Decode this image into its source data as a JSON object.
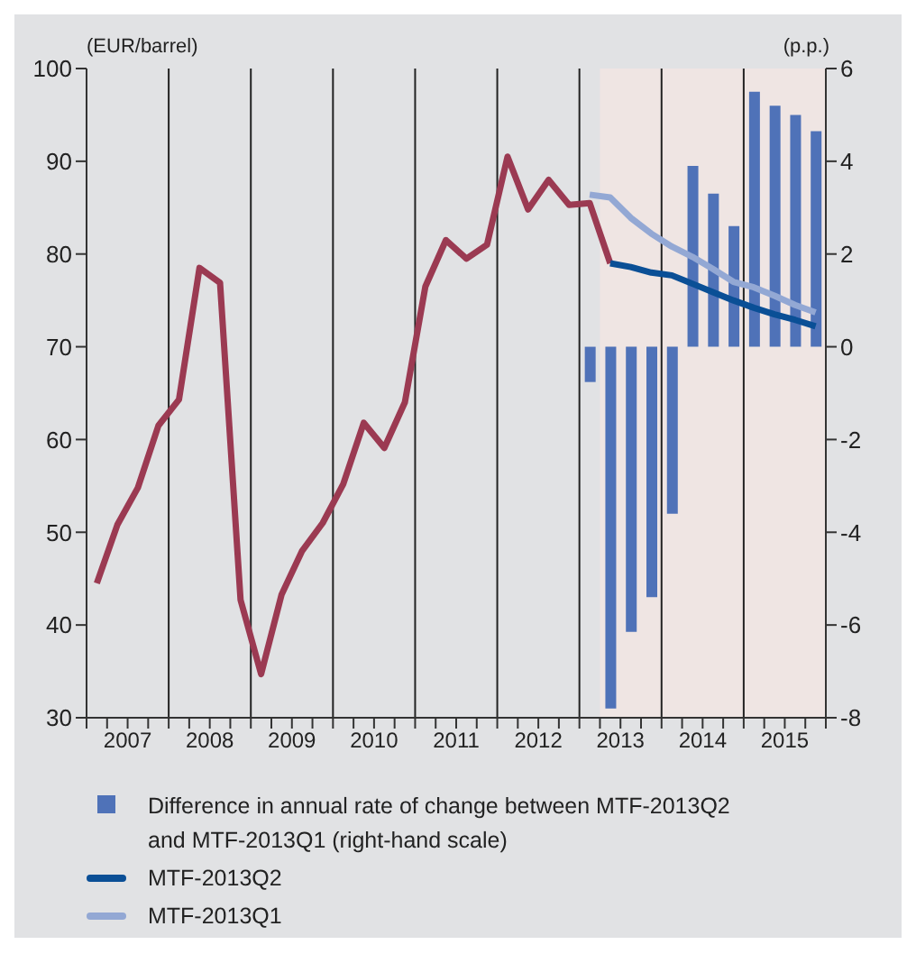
{
  "chart_data": {
    "type": "line",
    "ylabel": "(EUR/barrel)",
    "y2label": "(p.p.)",
    "x": [
      2007.125,
      2007.375,
      2007.625,
      2007.875,
      2008.125,
      2008.375,
      2008.625,
      2008.875,
      2009.125,
      2009.375,
      2009.625,
      2009.875,
      2010.125,
      2010.375,
      2010.625,
      2010.875,
      2011.125,
      2011.375,
      2011.625,
      2011.875,
      2012.125,
      2012.375,
      2012.625,
      2012.875,
      2013.125,
      2013.375,
      2013.625,
      2013.875,
      2014.125,
      2014.375,
      2014.625,
      2014.875,
      2015.125,
      2015.375,
      2015.625,
      2015.875
    ],
    "series": [
      {
        "type": "bar",
        "axis": "y2",
        "name": "Difference in annual rate of change between MTF-2013Q2 and MTF-2013Q1 (right-hand scale)",
        "color": "#4f72b8",
        "values": [
          null,
          null,
          null,
          null,
          null,
          null,
          null,
          null,
          null,
          null,
          null,
          null,
          null,
          null,
          null,
          null,
          null,
          null,
          null,
          null,
          null,
          null,
          null,
          null,
          -0.76,
          -7.8,
          -6.15,
          -5.4,
          -3.6,
          3.9,
          3.3,
          2.6,
          5.5,
          5.2,
          5.0,
          4.65
        ]
      },
      {
        "color": "#9b3a52",
        "values": [
          44.5,
          50.8,
          54.8,
          61.5,
          64.3,
          78.5,
          76.9,
          42.7,
          34.7,
          43.3,
          48,
          51,
          55.2,
          61.8,
          59.1,
          64,
          76.5,
          81.5,
          79.5,
          81,
          90.5,
          84.8,
          88,
          85.3,
          85.5,
          79.0,
          null,
          null,
          null,
          null,
          null,
          null,
          null,
          null,
          null,
          null
        ]
      },
      {
        "name": "MTF-2013Q2",
        "color": "#0a4f96",
        "values": [
          null,
          null,
          null,
          null,
          null,
          null,
          null,
          null,
          null,
          null,
          null,
          null,
          null,
          null,
          null,
          null,
          null,
          null,
          null,
          null,
          null,
          null,
          null,
          null,
          null,
          79.0,
          78.6,
          78.0,
          77.7,
          76.8,
          75.9,
          75.0,
          74.2,
          73.5,
          72.9,
          72.2
        ]
      },
      {
        "name": "MTF-2013Q1",
        "color": "#93a8d4",
        "values": [
          null,
          null,
          null,
          null,
          null,
          null,
          null,
          null,
          null,
          null,
          null,
          null,
          null,
          null,
          null,
          null,
          null,
          null,
          null,
          null,
          null,
          null,
          null,
          null,
          86.4,
          86.1,
          83.9,
          82.2,
          80.8,
          79.7,
          78.4,
          77.0,
          76.4,
          75.5,
          74.5,
          73.7
        ]
      }
    ],
    "xlim": [
      2007,
      2016
    ],
    "xticks": [
      {
        "value": 2007,
        "label": null
      },
      {
        "value": 2007.25,
        "label": null
      },
      {
        "value": 2007.5,
        "label": "2007"
      },
      {
        "value": 2007.75,
        "label": null
      },
      {
        "value": 2008,
        "label": null
      },
      {
        "value": 2008.25,
        "label": null
      },
      {
        "value": 2008.5,
        "label": "2008"
      },
      {
        "value": 2008.75,
        "label": null
      },
      {
        "value": 2009,
        "label": null
      },
      {
        "value": 2009.25,
        "label": null
      },
      {
        "value": 2009.5,
        "label": "2009"
      },
      {
        "value": 2009.75,
        "label": null
      },
      {
        "value": 2010,
        "label": null
      },
      {
        "value": 2010.25,
        "label": null
      },
      {
        "value": 2010.5,
        "label": "2010"
      },
      {
        "value": 2010.75,
        "label": null
      },
      {
        "value": 2011,
        "label": null
      },
      {
        "value": 2011.25,
        "label": null
      },
      {
        "value": 2011.5,
        "label": "2011"
      },
      {
        "value": 2011.75,
        "label": null
      },
      {
        "value": 2012,
        "label": null
      },
      {
        "value": 2012.25,
        "label": null
      },
      {
        "value": 2012.5,
        "label": "2012"
      },
      {
        "value": 2012.75,
        "label": null
      },
      {
        "value": 2013,
        "label": null
      },
      {
        "value": 2013.25,
        "label": null
      },
      {
        "value": 2013.5,
        "label": "2013"
      },
      {
        "value": 2013.75,
        "label": null
      },
      {
        "value": 2014,
        "label": null
      },
      {
        "value": 2014.25,
        "label": null
      },
      {
        "value": 2014.5,
        "label": "2014"
      },
      {
        "value": 2014.75,
        "label": null
      },
      {
        "value": 2015,
        "label": null
      },
      {
        "value": 2015.25,
        "label": null
      },
      {
        "value": 2015.5,
        "label": "2015"
      },
      {
        "value": 2015.75,
        "label": null
      },
      {
        "value": 2016,
        "label": null
      }
    ],
    "ylim": [
      30,
      100
    ],
    "yticks": [
      30,
      40,
      50,
      60,
      70,
      80,
      90,
      100
    ],
    "y2lim": [
      -8,
      6
    ],
    "y2ticks": [
      -8,
      -6,
      -4,
      -2,
      0,
      2,
      4,
      6
    ],
    "ref_lines": [
      {
        "axis": "x",
        "value": 2008,
        "color": "#222222"
      },
      {
        "axis": "x",
        "value": 2009,
        "color": "#222222"
      },
      {
        "axis": "x",
        "value": 2010,
        "color": "#222222"
      },
      {
        "axis": "x",
        "value": 2011,
        "color": "#222222"
      },
      {
        "axis": "x",
        "value": 2012,
        "color": "#222222"
      },
      {
        "axis": "x",
        "value": 2013,
        "color": "#222222"
      },
      {
        "axis": "x",
        "value": 2014,
        "color": "#222222"
      },
      {
        "axis": "x",
        "value": 2015,
        "color": "#222222"
      }
    ],
    "bands": [
      {
        "axis": "x",
        "from": 2013.25,
        "to": 2016,
        "color": "#efe5e3"
      }
    ],
    "legend": "bottom",
    "marker": "none",
    "line_style": "solid"
  }
}
